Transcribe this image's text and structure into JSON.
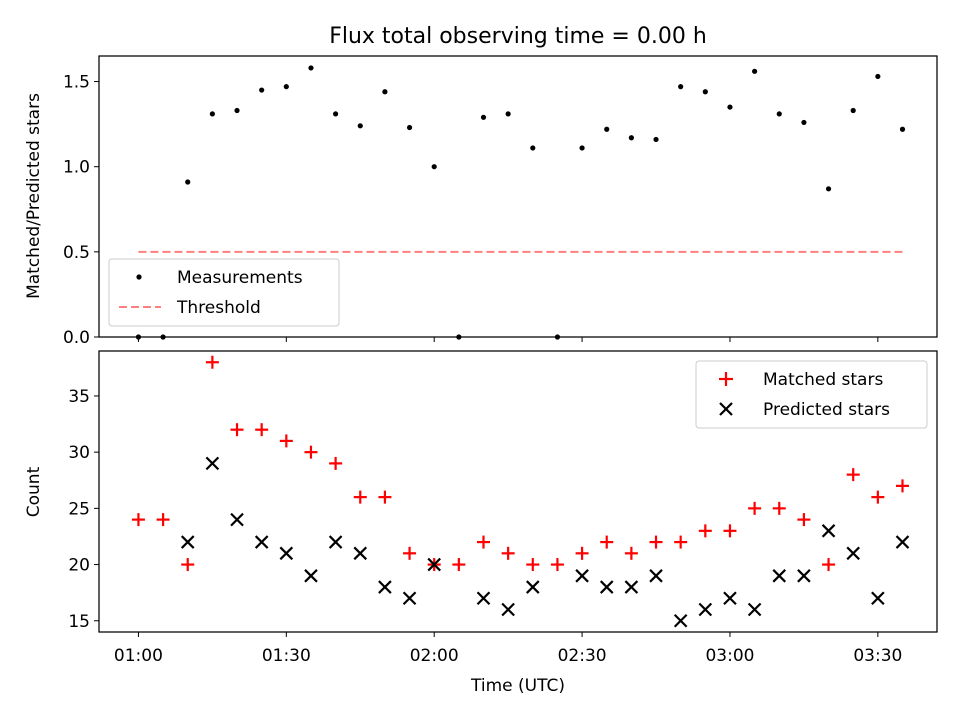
{
  "title": "Flux total observing time = 0.00 h",
  "colors": {
    "measurement": "#000000",
    "threshold": "#ff7f7f",
    "matched": "#ff0000",
    "predicted": "#000000"
  },
  "time_ticks": [
    "01:00",
    "01:30",
    "02:00",
    "02:30",
    "03:00",
    "03:30"
  ],
  "chart_data": [
    {
      "type": "scatter",
      "name": "ratio-panel",
      "ylabel": "Matched/Predicted stars",
      "xlim_minutes": [
        -8,
        162
      ],
      "ylim": [
        0,
        1.65
      ],
      "yticks": [
        0.0,
        0.5,
        1.0,
        1.5
      ],
      "ytick_labels": [
        "0.0",
        "0.5",
        "1.0",
        "1.5"
      ],
      "x_minutes": [
        0,
        5,
        10,
        15,
        20,
        25,
        30,
        35,
        40,
        45,
        50,
        55,
        60,
        65,
        70,
        75,
        80,
        85,
        90,
        95,
        100,
        105,
        110,
        115,
        120,
        125,
        130,
        135,
        140,
        145,
        150,
        155
      ],
      "series": [
        {
          "name": "Measurements",
          "marker": "dot",
          "values": [
            0,
            0,
            0.91,
            1.31,
            1.33,
            1.45,
            1.47,
            1.58,
            1.31,
            1.24,
            1.44,
            1.23,
            1.0,
            0,
            1.29,
            1.31,
            1.11,
            0,
            1.11,
            1.22,
            1.17,
            1.16,
            1.47,
            1.44,
            1.35,
            1.56,
            1.31,
            1.26,
            0.87,
            1.33,
            1.53,
            1.22
          ]
        },
        {
          "name": "Threshold",
          "marker": "dashed-line",
          "values": [
            0.5,
            0.5
          ],
          "x_range": [
            0,
            155
          ]
        }
      ],
      "legend": "lower-left"
    },
    {
      "type": "scatter",
      "name": "count-panel",
      "ylabel": "Count",
      "xlabel": "Time (UTC)",
      "xlim_minutes": [
        -8,
        162
      ],
      "ylim": [
        14,
        39
      ],
      "yticks": [
        15,
        20,
        25,
        30,
        35
      ],
      "ytick_labels": [
        "15",
        "20",
        "25",
        "30",
        "35"
      ],
      "x_minutes": [
        0,
        5,
        10,
        15,
        20,
        25,
        30,
        35,
        40,
        45,
        50,
        55,
        60,
        65,
        70,
        75,
        80,
        85,
        90,
        95,
        100,
        105,
        110,
        115,
        120,
        125,
        130,
        135,
        140,
        145,
        150,
        155
      ],
      "series": [
        {
          "name": "Matched stars",
          "marker": "plus",
          "values": [
            24,
            24,
            20,
            38,
            32,
            32,
            31,
            30,
            29,
            26,
            26,
            21,
            20,
            20,
            22,
            21,
            20,
            20,
            21,
            22,
            21,
            22,
            22,
            23,
            23,
            25,
            25,
            24,
            20,
            28,
            26,
            27
          ]
        },
        {
          "name": "Predicted stars",
          "marker": "x",
          "values": [
            null,
            null,
            22,
            29,
            24,
            22,
            21,
            19,
            22,
            21,
            18,
            17,
            20,
            null,
            17,
            16,
            18,
            null,
            19,
            18,
            18,
            19,
            15,
            16,
            17,
            16,
            19,
            19,
            23,
            21,
            17,
            22
          ]
        }
      ],
      "legend": "upper-right"
    }
  ]
}
